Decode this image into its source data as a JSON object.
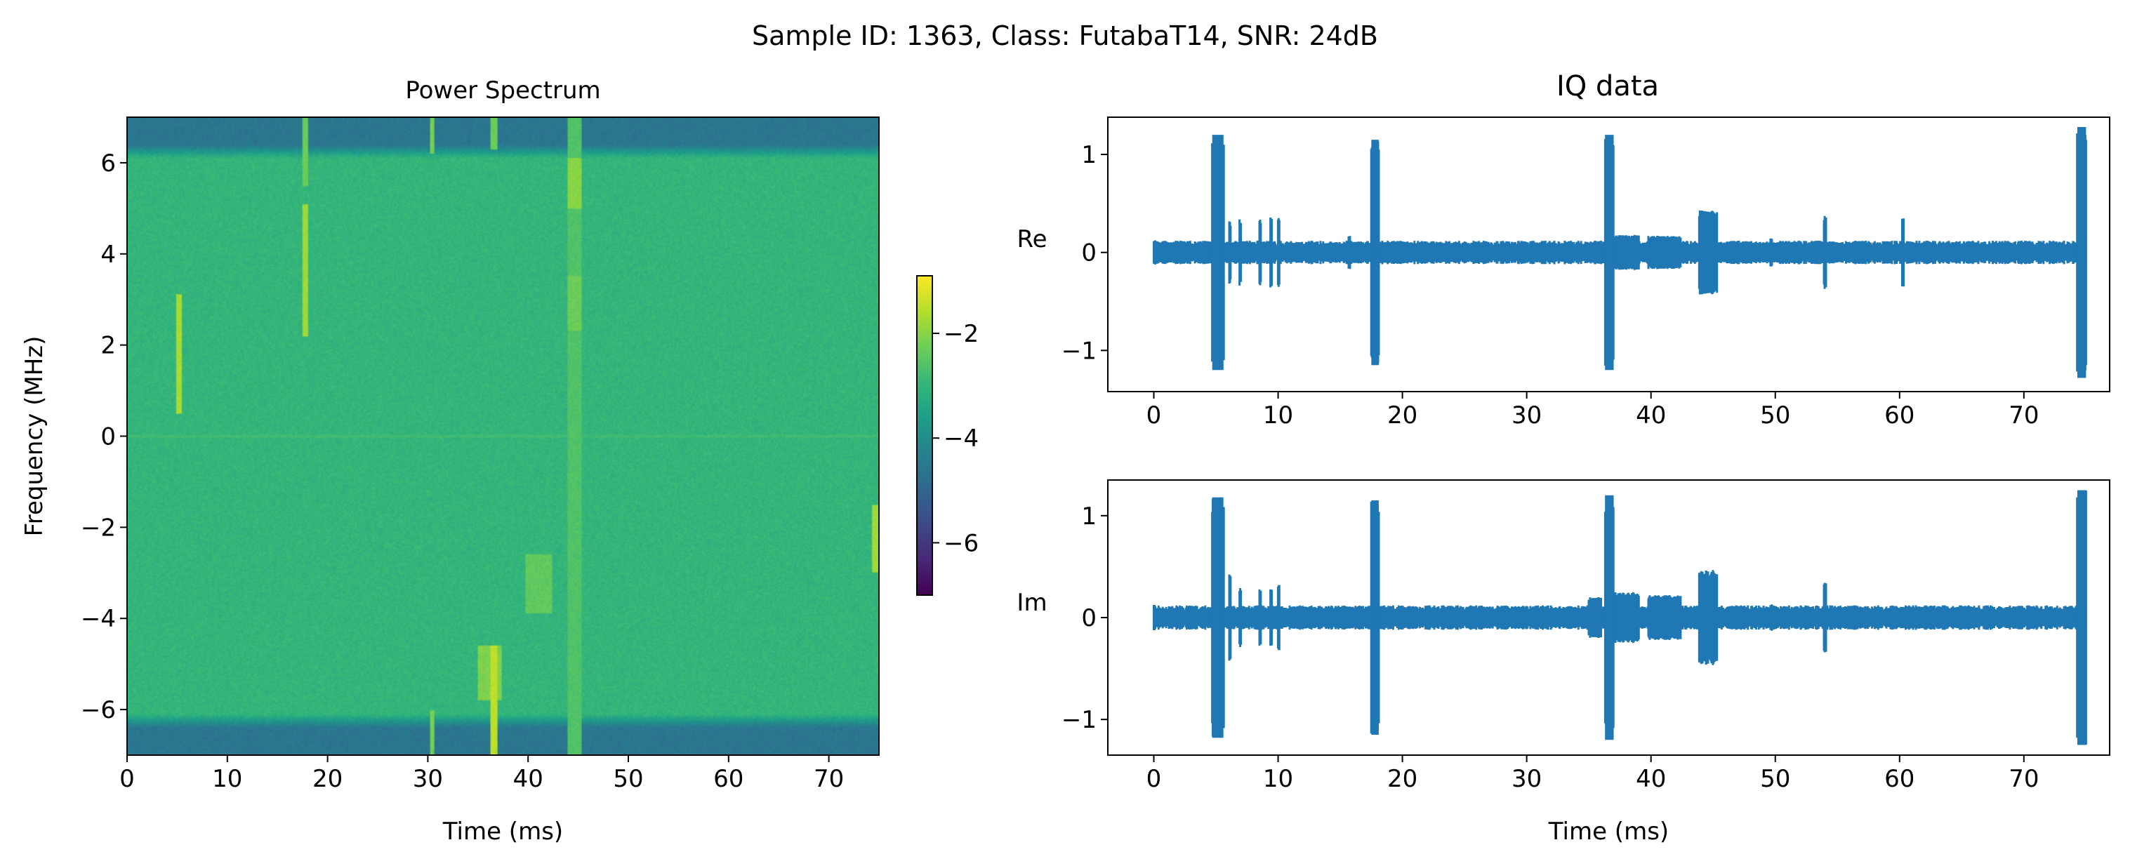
{
  "suptitle": "Sample ID: 1363, Class: FutabaT14, SNR: 24dB",
  "colors": {
    "iq_line": "#1f77b4",
    "viridis": [
      "#440154",
      "#482878",
      "#3e4989",
      "#31688e",
      "#26828e",
      "#1f9e89",
      "#35b779",
      "#6ece58",
      "#b5de2b",
      "#fde725"
    ]
  },
  "chart_data": [
    {
      "type": "heatmap",
      "title": "Power Spectrum",
      "xlabel": "Time (ms)",
      "ylabel": "Frequency (MHz)",
      "xlim": [
        0,
        75
      ],
      "ylim": [
        -7,
        7
      ],
      "xticks": [
        0,
        10,
        20,
        30,
        40,
        50,
        60,
        70
      ],
      "yticks": [
        -6,
        -4,
        -2,
        0,
        2,
        4,
        6
      ],
      "colorscale": "viridis",
      "colorbar": {
        "range": [
          -7,
          -0.9
        ],
        "ticks": [
          -6,
          -4,
          -2
        ]
      },
      "background_level": -3.0,
      "edge_band_level": -4.6,
      "edge_band_mhz": 6.1,
      "dc_line_level": -2.8,
      "bursts": [
        {
          "t0": 4.9,
          "t1": 5.5,
          "f0": 0.5,
          "f1": 3.1,
          "level": -1.7
        },
        {
          "t0": 17.5,
          "t1": 18.1,
          "f0": 2.2,
          "f1": 5.1,
          "level": -1.8
        },
        {
          "t0": 17.5,
          "t1": 18.1,
          "f0": 5.5,
          "f1": 7.0,
          "level": -2.3
        },
        {
          "t0": 30.2,
          "t1": 30.7,
          "f0": 6.2,
          "f1": 7.0,
          "level": -2.2
        },
        {
          "t0": 30.2,
          "t1": 30.7,
          "f0": -7.0,
          "f1": -6.0,
          "level": -2.2
        },
        {
          "t0": 36.3,
          "t1": 37.0,
          "f0": 6.3,
          "f1": 7.0,
          "level": -2.3
        },
        {
          "t0": 35.0,
          "t1": 37.4,
          "f0": -5.8,
          "f1": -4.6,
          "level": -2.1
        },
        {
          "t0": 36.3,
          "t1": 37.0,
          "f0": -7.0,
          "f1": -4.6,
          "level": -1.5
        },
        {
          "t0": 39.8,
          "t1": 42.4,
          "f0": -3.9,
          "f1": -2.6,
          "level": -2.4
        },
        {
          "t0": 43.9,
          "t1": 45.3,
          "f0": -7.0,
          "f1": 7.0,
          "level": -2.6
        },
        {
          "t0": 43.9,
          "t1": 45.3,
          "f0": 5.0,
          "f1": 6.1,
          "level": -2.0
        },
        {
          "t0": 43.9,
          "t1": 45.3,
          "f0": 2.3,
          "f1": 3.5,
          "level": -2.3
        },
        {
          "t0": 74.3,
          "t1": 75.0,
          "f0": -3.0,
          "f1": -1.5,
          "level": -1.8
        }
      ]
    },
    {
      "type": "line",
      "title": "IQ data",
      "ylabel": "Re",
      "xlabel": "",
      "xlim": [
        -3.7,
        76.9
      ],
      "ylim": [
        -1.42,
        1.38
      ],
      "xticks": [
        0,
        10,
        20,
        30,
        40,
        50,
        60,
        70
      ],
      "yticks": [
        -1,
        0,
        1
      ],
      "noise_amplitude": 0.1,
      "features": [
        {
          "t0": 0.0,
          "t1": 0.1,
          "amp": 0.13
        },
        {
          "t0": 4.7,
          "t1": 5.6,
          "amp": 1.2
        },
        {
          "t0": 6.1,
          "t1": 6.2,
          "amp": 0.32
        },
        {
          "t0": 6.9,
          "t1": 7.0,
          "amp": 0.35
        },
        {
          "t0": 8.5,
          "t1": 8.6,
          "amp": 0.35
        },
        {
          "t0": 9.4,
          "t1": 9.5,
          "amp": 0.38
        },
        {
          "t0": 10.0,
          "t1": 10.1,
          "amp": 0.38
        },
        {
          "t0": 15.7,
          "t1": 15.8,
          "amp": 0.17
        },
        {
          "t0": 17.5,
          "t1": 18.1,
          "amp": 1.15
        },
        {
          "t0": 36.3,
          "t1": 37.0,
          "amp": 1.2
        },
        {
          "t0": 37.0,
          "t1": 39.0,
          "amp": 0.18
        },
        {
          "t0": 39.8,
          "t1": 42.4,
          "amp": 0.17
        },
        {
          "t0": 43.9,
          "t1": 45.3,
          "amp": 0.43
        },
        {
          "t0": 49.6,
          "t1": 49.7,
          "amp": 0.16
        },
        {
          "t0": 53.9,
          "t1": 54.1,
          "amp": 0.38
        },
        {
          "t0": 60.2,
          "t1": 60.3,
          "amp": 0.35
        },
        {
          "t0": 74.3,
          "t1": 75.0,
          "amp": 1.28
        }
      ]
    },
    {
      "type": "line",
      "title": "",
      "ylabel": "Im",
      "xlabel": "Time (ms)",
      "xlim": [
        -3.7,
        76.9
      ],
      "ylim": [
        -1.35,
        1.35
      ],
      "xticks": [
        0,
        10,
        20,
        30,
        40,
        50,
        60,
        70
      ],
      "yticks": [
        -1,
        0,
        1
      ],
      "noise_amplitude": 0.1,
      "features": [
        {
          "t0": 0.0,
          "t1": 0.1,
          "amp": 0.13
        },
        {
          "t0": 4.7,
          "t1": 5.6,
          "amp": 1.18
        },
        {
          "t0": 6.1,
          "t1": 6.2,
          "amp": 0.45
        },
        {
          "t0": 6.9,
          "t1": 7.0,
          "amp": 0.3
        },
        {
          "t0": 8.5,
          "t1": 8.6,
          "amp": 0.3
        },
        {
          "t0": 9.4,
          "t1": 9.5,
          "amp": 0.3
        },
        {
          "t0": 10.0,
          "t1": 10.1,
          "amp": 0.33
        },
        {
          "t0": 17.5,
          "t1": 18.1,
          "amp": 1.15
        },
        {
          "t0": 35.0,
          "t1": 36.0,
          "amp": 0.2
        },
        {
          "t0": 36.3,
          "t1": 37.0,
          "amp": 1.2
        },
        {
          "t0": 37.0,
          "t1": 39.0,
          "amp": 0.25
        },
        {
          "t0": 39.8,
          "t1": 42.4,
          "amp": 0.22
        },
        {
          "t0": 43.9,
          "t1": 45.3,
          "amp": 0.47
        },
        {
          "t0": 49.6,
          "t1": 49.7,
          "amp": 0.13
        },
        {
          "t0": 53.9,
          "t1": 54.1,
          "amp": 0.37
        },
        {
          "t0": 74.3,
          "t1": 75.0,
          "amp": 1.25
        }
      ]
    }
  ]
}
